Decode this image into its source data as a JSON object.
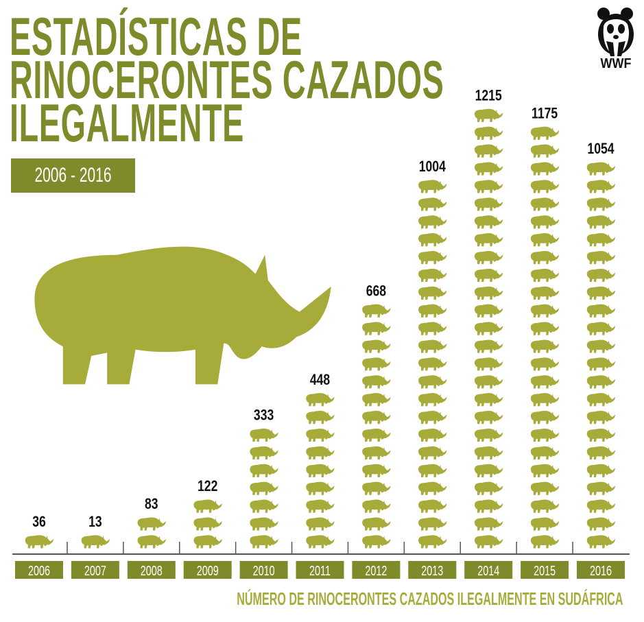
{
  "title_lines": [
    "ESTADÍSTICAS DE",
    "RINOCERONTES CAZADOS",
    "ILEGALMENTE"
  ],
  "date_range": "2006 - 2016",
  "logo_text": "WWF",
  "footer": "NÚMERO DE RINOCERONTES CAZADOS ILEGALMENTE EN SUDÁFRICA",
  "colors": {
    "title": "#7f8b2b",
    "icon": "#a6ab3a",
    "year_box": "#7f8b2b",
    "axis": "#555555"
  },
  "chart_data": {
    "type": "bar",
    "style": "pictogram",
    "title": "Estadísticas de rinocerontes cazados ilegalmente",
    "subtitle": "2006 - 2016",
    "xlabel": "",
    "ylabel": "Número de rinocerontes cazados ilegalmente en Sudáfrica",
    "categories": [
      "2006",
      "2007",
      "2008",
      "2009",
      "2010",
      "2011",
      "2012",
      "2013",
      "2014",
      "2015",
      "2016"
    ],
    "values": [
      36,
      13,
      83,
      122,
      333,
      448,
      668,
      1004,
      1215,
      1175,
      1054
    ],
    "units_per_icon": 50
  }
}
